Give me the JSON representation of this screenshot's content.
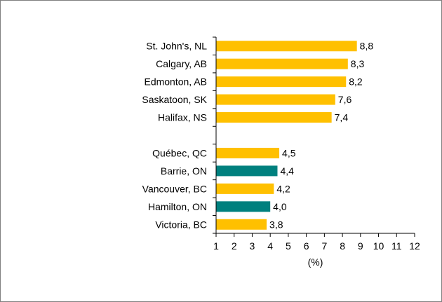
{
  "chart_data": {
    "type": "bar",
    "orientation": "horizontal",
    "categories": [
      "St. John's, NL",
      "Calgary, AB",
      "Edmonton, AB",
      "Saskatoon, SK",
      "Halifax, NS",
      "",
      "Québec, QC",
      "Barrie, ON",
      "Vancouver, BC",
      "Hamilton, ON",
      "Victoria, BC"
    ],
    "values": [
      8.8,
      8.3,
      8.2,
      7.6,
      7.4,
      null,
      4.5,
      4.4,
      4.2,
      4.0,
      3.8
    ],
    "value_labels": [
      "8,8",
      "8,3",
      "8,2",
      "7,6",
      "7,4",
      "",
      "4,5",
      "4,4",
      "4,2",
      "4,0",
      "3,8"
    ],
    "highlighted": [
      "Barrie, ON",
      "Hamilton, ON"
    ],
    "colors": {
      "default": "#FFC000",
      "highlight": "#00807E",
      "axis": "#000000"
    },
    "xlim": [
      1,
      12
    ],
    "xticks": [
      1,
      2,
      3,
      4,
      5,
      6,
      7,
      8,
      9,
      10,
      11,
      12
    ],
    "xlabel": "(%)",
    "title": "",
    "ylabel": "",
    "grid": false,
    "legend": "none"
  }
}
